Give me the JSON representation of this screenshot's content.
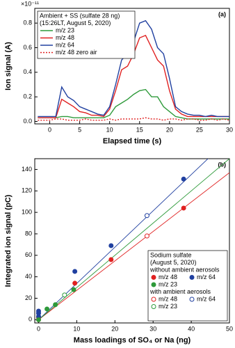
{
  "chart_data": [
    {
      "type": "line",
      "panel_label": "(a)",
      "multiplier": "×10⁻¹¹",
      "x_label": "Elapsed time (s)",
      "y_label": "Ion signal (A)",
      "legend_title": [
        "Ambient + SS (sulfate 28 ng)",
        "(15:26LT, August 5, 2020)"
      ],
      "legend": "top-left",
      "xlim": [
        -2.5,
        30
      ],
      "xticks": [
        0,
        5,
        10,
        15,
        20,
        25,
        30
      ],
      "ylim": [
        -0.02,
        0.92
      ],
      "yticks": [
        {
          "value": 0,
          "label": "0.0"
        },
        {
          "value": 0.2,
          "label": "0.2"
        },
        {
          "value": 0.4,
          "label": "0.4"
        },
        {
          "value": 0.6,
          "label": "0.6"
        },
        {
          "value": 0.8,
          "label": "0.8"
        }
      ],
      "x": [
        -2,
        -1,
        0,
        1,
        2,
        3,
        4,
        5,
        6,
        7,
        8,
        9,
        10,
        11,
        12,
        13,
        14,
        15,
        16,
        17,
        18,
        19,
        20,
        21,
        22,
        23,
        24,
        25,
        26,
        27,
        28,
        29,
        30
      ],
      "series": [
        {
          "name": "m/z 23",
          "color": "#2e9a3a",
          "dashed": false,
          "values": [
            0.03,
            0.03,
            0.03,
            0.03,
            0.04,
            0.04,
            0.03,
            0.03,
            0.03,
            0.03,
            0.03,
            0.03,
            0.05,
            0.12,
            0.15,
            0.18,
            0.22,
            0.25,
            0.26,
            0.2,
            0.2,
            0.12,
            0.08,
            0.04,
            0.03,
            0.02,
            0.02,
            0.02,
            0.02,
            0.02,
            0.02,
            0.02,
            0.02
          ]
        },
        {
          "name": "m/z 48",
          "color": "#e02020",
          "dashed": false,
          "values": [
            0.03,
            0.03,
            0.03,
            0.03,
            0.18,
            0.15,
            0.12,
            0.08,
            0.07,
            0.05,
            0.05,
            0.04,
            0.1,
            0.25,
            0.42,
            0.45,
            0.55,
            0.68,
            0.7,
            0.6,
            0.5,
            0.45,
            0.25,
            0.1,
            0.06,
            0.04,
            0.04,
            0.04,
            0.04,
            0.04,
            0.04,
            0.04,
            0.04
          ]
        },
        {
          "name": "m/z 64",
          "color": "#2040a0",
          "dashed": false,
          "values": [
            0.04,
            0.04,
            0.04,
            0.04,
            0.28,
            0.2,
            0.17,
            0.12,
            0.1,
            0.08,
            0.06,
            0.05,
            0.12,
            0.3,
            0.5,
            0.55,
            0.65,
            0.8,
            0.82,
            0.75,
            0.6,
            0.55,
            0.35,
            0.12,
            0.08,
            0.06,
            0.05,
            0.05,
            0.04,
            0.05,
            0.04,
            0.04,
            0.04
          ]
        },
        {
          "name": "m/z 48 zero air",
          "color": "#e02020",
          "dashed": true,
          "values": [
            0.01,
            0.01,
            0.01,
            0.02,
            0.02,
            0.01,
            0.01,
            0.01,
            0.02,
            0.01,
            0.01,
            0.01,
            0.02,
            0.01,
            0.02,
            0.02,
            0.02,
            0.02,
            0.03,
            0.02,
            0.02,
            0.01,
            0.02,
            0.02,
            0.01,
            0.02,
            0.02,
            0.01,
            0.01,
            0.02,
            0.01,
            0.02,
            0.01
          ]
        }
      ]
    },
    {
      "type": "scatter",
      "panel_label": "(b)",
      "x_label": "Mass loadings of SO₄ or Na (ng)",
      "y_label": "Integrated ion signal (pC)",
      "legend_title": [
        "Sodium sulfate",
        "(August 5, 2020)"
      ],
      "legend_groups": [
        "without ambient aerosols",
        "with ambient aerosols"
      ],
      "legend": "bottom-right",
      "xlim": [
        -1,
        50
      ],
      "xticks": [
        0,
        10,
        20,
        30,
        40,
        50
      ],
      "ylim": [
        -3,
        150
      ],
      "yticks": [
        0,
        20,
        40,
        60,
        80,
        100,
        120,
        140
      ],
      "series": [
        {
          "name": "m/z 48",
          "color": "#e02020",
          "marker": "filled",
          "x": [
            0,
            0,
            9.5,
            19,
            38
          ],
          "values": [
            0,
            2,
            34,
            56,
            104
          ]
        },
        {
          "name": "m/z 64",
          "color": "#2040a0",
          "marker": "filled",
          "x": [
            0,
            0,
            0,
            9.5,
            19,
            38
          ],
          "values": [
            3,
            6,
            8,
            45,
            69,
            131
          ]
        },
        {
          "name": "m/z 23",
          "color": "#2e9a3a",
          "marker": "filled",
          "x": [
            0,
            2.2,
            4.4,
            9.2
          ],
          "values": [
            0,
            10,
            14,
            28
          ]
        },
        {
          "name": "m/z 48",
          "color": "#e02020",
          "marker": "open",
          "x": [
            28.4
          ],
          "values": [
            78
          ]
        },
        {
          "name": "m/z 64",
          "color": "#2040a0",
          "marker": "open",
          "x": [
            28.4
          ],
          "values": [
            97
          ]
        },
        {
          "name": "m/z 23",
          "color": "#2e9a3a",
          "marker": "open",
          "x": [
            6.8
          ],
          "values": [
            23
          ]
        }
      ],
      "fits": [
        {
          "color": "#e02020",
          "x": [
            0,
            50
          ],
          "values": [
            0,
            137
          ]
        },
        {
          "color": "#2040a0",
          "x": [
            0,
            50
          ],
          "values": [
            0,
            169
          ]
        },
        {
          "color": "#2e9a3a",
          "x": [
            0,
            50
          ],
          "values": [
            0,
            150
          ]
        }
      ]
    }
  ]
}
